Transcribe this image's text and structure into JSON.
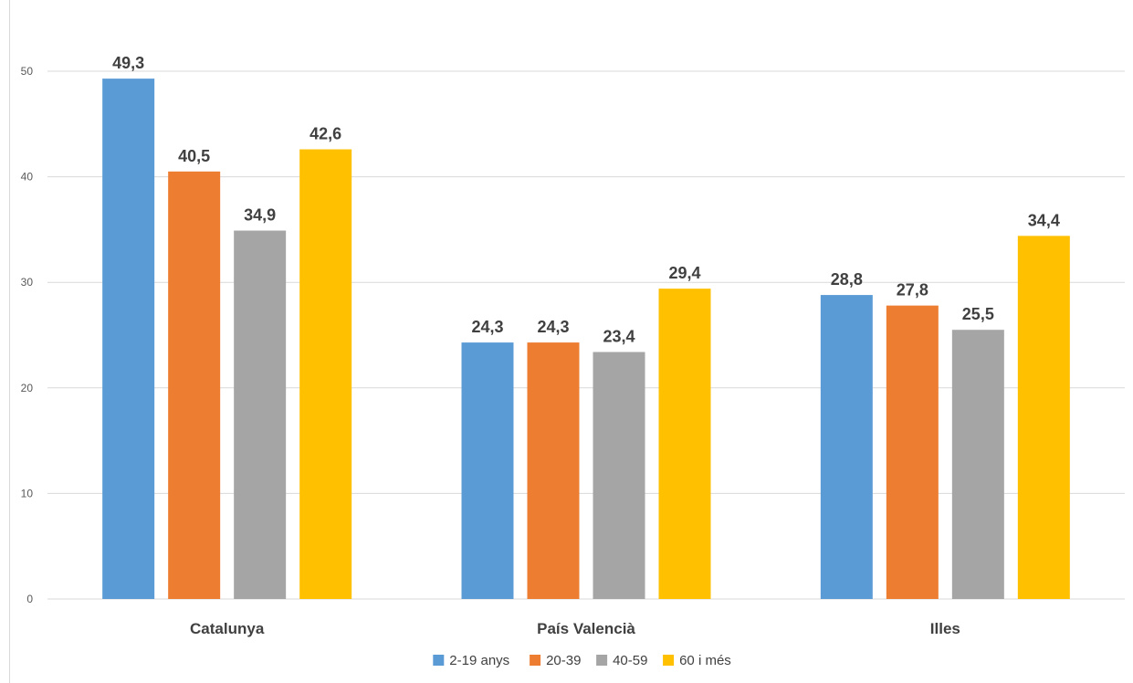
{
  "chart_data": {
    "type": "bar",
    "categories": [
      "Catalunya",
      "País Valencià",
      "Illes"
    ],
    "series": [
      {
        "name": "2-19 anys",
        "values": [
          49.3,
          24.3,
          28.8
        ],
        "value_labels": [
          "49,3",
          "24,3",
          "28,8"
        ],
        "color": "#5b9bd5"
      },
      {
        "name": "20-39",
        "values": [
          40.5,
          24.3,
          27.8
        ],
        "value_labels": [
          "40,5",
          "24,3",
          "27,8"
        ],
        "color": "#ed7d31"
      },
      {
        "name": "40-59",
        "values": [
          34.9,
          23.4,
          25.5
        ],
        "value_labels": [
          "34,9",
          "23,4",
          "25,5"
        ],
        "color": "#a5a5a5"
      },
      {
        "name": "60 i més",
        "values": [
          42.6,
          29.4,
          34.4
        ],
        "value_labels": [
          "42,6",
          "29,4",
          "34,4"
        ],
        "color": "#ffc000"
      }
    ],
    "yticks": [
      "0",
      "10",
      "20",
      "30",
      "40",
      "50"
    ],
    "ylim": [
      0,
      50
    ],
    "grid": true,
    "legend_position": "bottom",
    "title": "",
    "xlabel": "",
    "ylabel": ""
  }
}
